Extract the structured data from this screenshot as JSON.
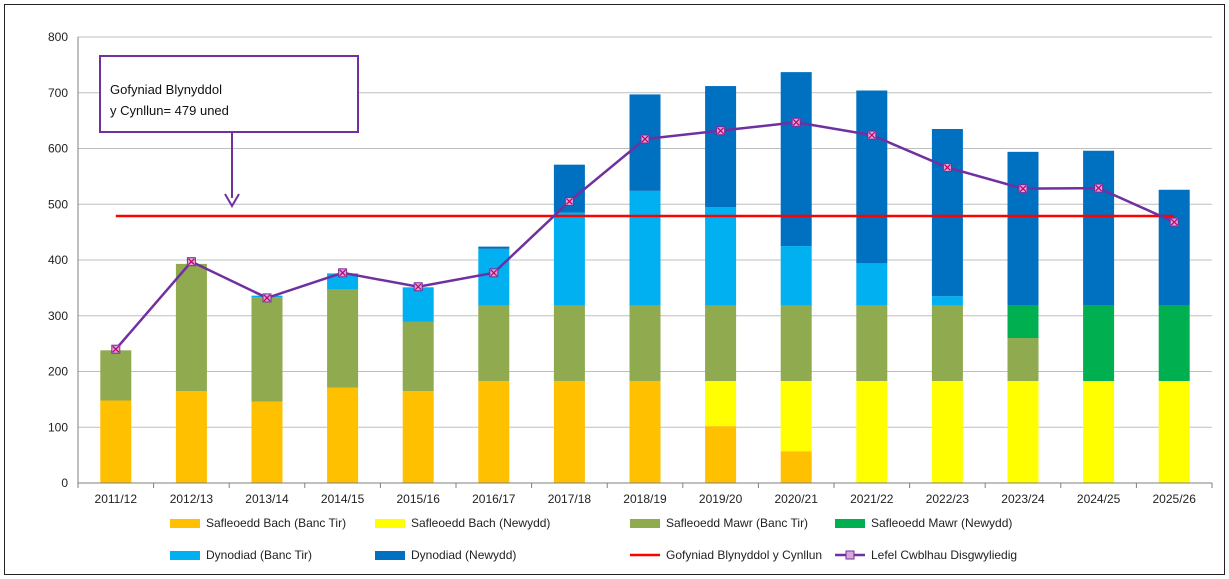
{
  "chart_data": {
    "type": "bar",
    "stacked": true,
    "categories": [
      "2011/12",
      "2012/13",
      "2013/14",
      "2014/15",
      "2015/16",
      "2016/17",
      "2017/18",
      "2018/19",
      "2019/20",
      "2020/21",
      "2021/22",
      "2022/23",
      "2023/24",
      "2024/25",
      "2025/26"
    ],
    "ylim": [
      0,
      800
    ],
    "yticks": [
      0,
      100,
      200,
      300,
      400,
      500,
      600,
      700,
      800
    ],
    "grid": true,
    "legend_position": "bottom",
    "series": [
      {
        "name": "Safleoedd Bach (Banc Tir)",
        "color": "#FFC000",
        "values": [
          148,
          165,
          146,
          171,
          165,
          183,
          183,
          183,
          102,
          57,
          0,
          0,
          0,
          0,
          0
        ]
      },
      {
        "name": "Safleoedd Bach (Newydd)",
        "color": "#FFFF00",
        "values": [
          0,
          0,
          0,
          0,
          0,
          0,
          0,
          0,
          81,
          126,
          183,
          183,
          183,
          183,
          183
        ]
      },
      {
        "name": "Safleoedd Mawr (Banc Tir)",
        "color": "#8FAA4F",
        "values": [
          90,
          228,
          187,
          177,
          124,
          135,
          135,
          135,
          135,
          135,
          135,
          135,
          77,
          0,
          0
        ]
      },
      {
        "name": "Safleoedd Mawr (Newydd)",
        "color": "#00B050",
        "values": [
          0,
          0,
          0,
          0,
          0,
          0,
          0,
          0,
          0,
          0,
          0,
          0,
          58,
          135,
          135
        ]
      },
      {
        "name": "Dynodiad (Banc Tir)",
        "color": "#00B0F0",
        "values": [
          0,
          0,
          3,
          28,
          62,
          102,
          167,
          206,
          177,
          107,
          76,
          17,
          0,
          0,
          0
        ]
      },
      {
        "name": "Dynodiad (Newydd)",
        "color": "#0070C0",
        "values": [
          0,
          0,
          0,
          0,
          0,
          4,
          86,
          173,
          217,
          312,
          310,
          300,
          276,
          278,
          208
        ]
      }
    ],
    "lines": [
      {
        "name": "Gofyniad Blynyddol y Cynllun",
        "color": "#FF0000",
        "value": 479
      },
      {
        "name": "Lefel Cwblhau Disgwyliedig",
        "color": "#7030A0",
        "values": [
          240,
          397,
          332,
          377,
          352,
          377,
          505,
          617,
          632,
          647,
          624,
          566,
          528,
          529,
          468
        ]
      }
    ],
    "annotation": {
      "line1": "Gofyniad Blynyddol",
      "line2": "y Cynllun= 479 uned"
    }
  }
}
